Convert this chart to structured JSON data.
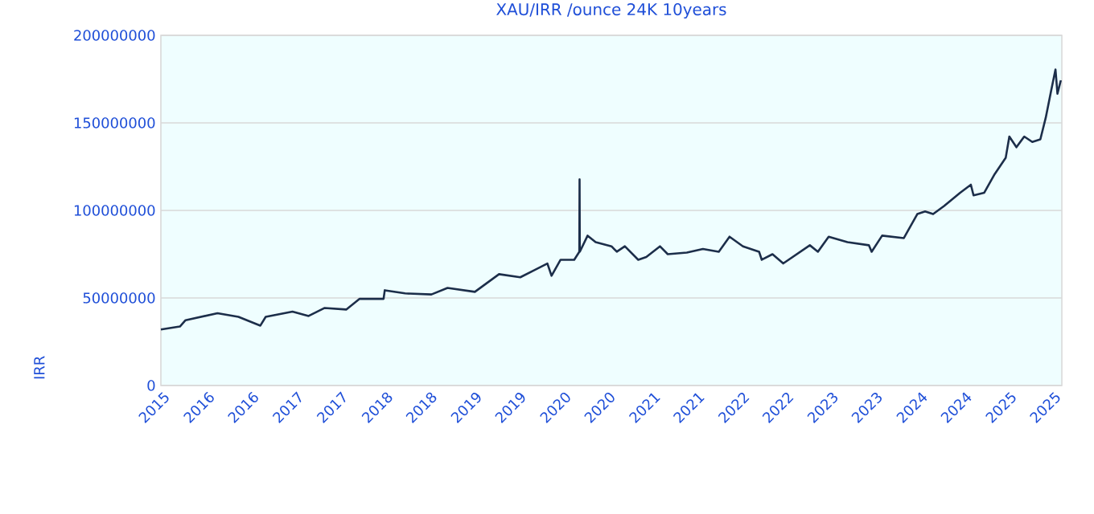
{
  "chart_data": {
    "type": "line",
    "title": "XAU/IRR /ounce 24K 10years",
    "ylabel": "IRR",
    "xlim": [
      "2015-07-01",
      "2025-08-10"
    ],
    "xticks": [
      {
        "value": "2015-07-01",
        "label": "2015"
      },
      {
        "value": "2016-01-01",
        "label": "2016"
      },
      {
        "value": "2016-07-01",
        "label": "2016"
      },
      {
        "value": "2017-01-01",
        "label": "2017"
      },
      {
        "value": "2017-07-01",
        "label": "2017"
      },
      {
        "value": "2018-01-01",
        "label": "2018"
      },
      {
        "value": "2018-07-01",
        "label": "2018"
      },
      {
        "value": "2019-01-01",
        "label": "2019"
      },
      {
        "value": "2019-07-01",
        "label": "2019"
      },
      {
        "value": "2020-01-01",
        "label": "2020"
      },
      {
        "value": "2020-07-01",
        "label": "2020"
      },
      {
        "value": "2021-01-01",
        "label": "2021"
      },
      {
        "value": "2021-07-01",
        "label": "2021"
      },
      {
        "value": "2022-01-01",
        "label": "2022"
      },
      {
        "value": "2022-07-01",
        "label": "2022"
      },
      {
        "value": "2023-01-01",
        "label": "2023"
      },
      {
        "value": "2023-07-01",
        "label": "2023"
      },
      {
        "value": "2024-01-01",
        "label": "2024"
      },
      {
        "value": "2024-07-01",
        "label": "2024"
      },
      {
        "value": "2025-01-01",
        "label": "2025"
      },
      {
        "value": "2025-07-01",
        "label": "2025"
      }
    ],
    "ylim": [
      0,
      200000000
    ],
    "yticks": [
      0,
      50000000,
      100000000,
      150000000,
      200000000
    ],
    "grid": "y",
    "marker": "none",
    "line_style": "solid",
    "x": [
      "2015-07-01",
      "2015-09-17",
      "2015-10-10",
      "2016-02-18",
      "2016-05-14",
      "2016-08-12",
      "2016-09-03",
      "2016-12-22",
      "2017-02-26",
      "2017-05-03",
      "2017-07-30",
      "2017-09-23",
      "2017-12-30",
      "2018-01-04",
      "2018-03-28",
      "2018-07-14",
      "2018-09-18",
      "2019-01-08",
      "2019-04-17",
      "2019-07-13",
      "2019-09-07",
      "2019-11-01",
      "2019-11-18",
      "2019-12-25",
      "2020-02-19",
      "2020-03-11",
      "2020-03-12",
      "2020-03-13",
      "2020-04-14",
      "2020-05-17",
      "2020-07-21",
      "2020-08-12",
      "2020-09-14",
      "2020-11-08",
      "2020-12-11",
      "2021-02-05",
      "2021-03-09",
      "2021-05-26",
      "2021-07-31",
      "2021-10-04",
      "2021-11-17",
      "2022-01-11",
      "2022-03-18",
      "2022-03-29",
      "2022-05-12",
      "2022-06-25",
      "2022-10-12",
      "2022-11-14",
      "2022-12-28",
      "2023-03-15",
      "2023-06-11",
      "2023-06-22",
      "2023-08-04",
      "2023-11-01",
      "2023-12-26",
      "2024-01-27",
      "2024-02-29",
      "2024-04-14",
      "2024-06-19",
      "2024-08-02",
      "2024-08-13",
      "2024-09-26",
      "2024-11-08",
      "2024-12-23",
      "2025-01-07",
      "2025-02-05",
      "2025-03-09",
      "2025-04-11",
      "2025-05-14",
      "2025-06-05",
      "2025-06-27",
      "2025-07-15",
      "2025-07-23",
      "2025-08-06"
    ],
    "series": [
      {
        "color": "#1c2e4a",
        "values": [
          32000000,
          33700000,
          37300000,
          41300000,
          39200000,
          34200000,
          39200000,
          42200000,
          39700000,
          44300000,
          43400000,
          49500000,
          49500000,
          54400000,
          52600000,
          52000000,
          55700000,
          53500000,
          63600000,
          61800000,
          65800000,
          69700000,
          62700000,
          71800000,
          71800000,
          76400000,
          117700000,
          76400000,
          85600000,
          81900000,
          79500000,
          76400000,
          79500000,
          71800000,
          73400000,
          79500000,
          75000000,
          75900000,
          78000000,
          76400000,
          85000000,
          79500000,
          76400000,
          71800000,
          75000000,
          69700000,
          80100000,
          76400000,
          85000000,
          81900000,
          80100000,
          76400000,
          85600000,
          84200000,
          97900000,
          99400000,
          97900000,
          102500000,
          110100000,
          114700000,
          108600000,
          110100000,
          120800000,
          130000000,
          142200000,
          136100000,
          142200000,
          139100000,
          140600000,
          152900000,
          168200000,
          180500000,
          166700000,
          174300000
        ]
      }
    ]
  }
}
